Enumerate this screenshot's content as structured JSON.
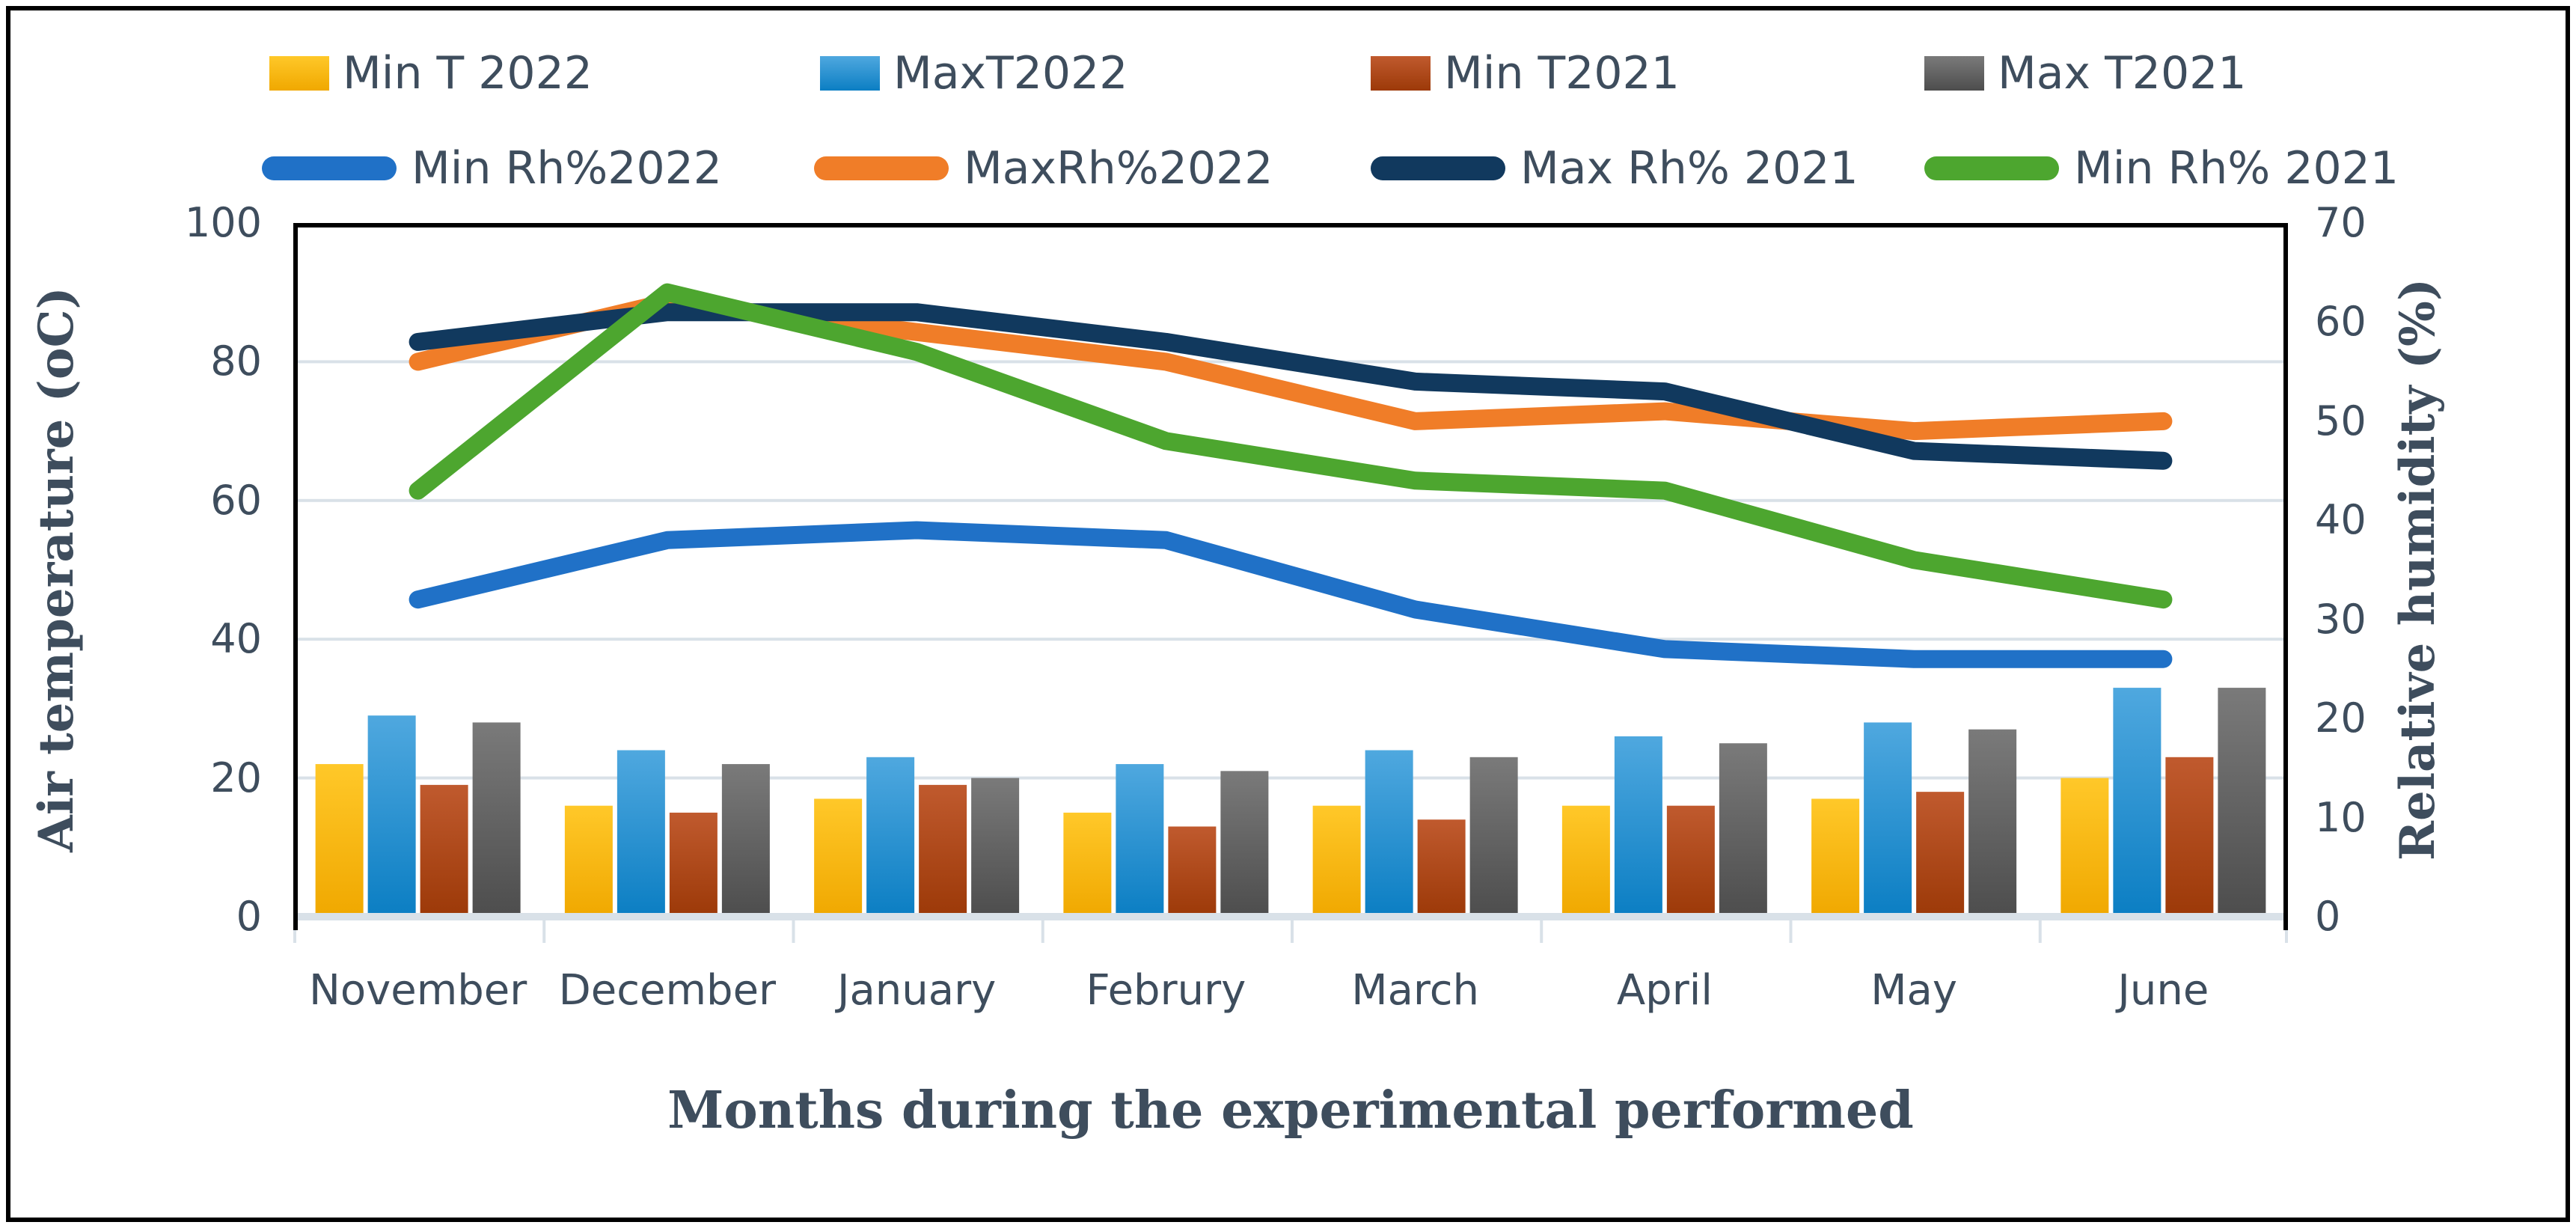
{
  "legend": {
    "row1": [
      {
        "label": "Min T 2022",
        "swatch": "bar",
        "color_top": "#FFC829",
        "color_bottom": "#F0A800"
      },
      {
        "label": "MaxT2022",
        "swatch": "bar",
        "color_top": "#4FA8DF",
        "color_bottom": "#0B7EC3"
      },
      {
        "label": "Min T2021",
        "swatch": "bar",
        "color_top": "#C05A2E",
        "color_bottom": "#9C3908"
      },
      {
        "label": "Max T2021",
        "swatch": "bar",
        "color_top": "#7A7A7A",
        "color_bottom": "#4D4D4D"
      }
    ],
    "row2": [
      {
        "label": "Min Rh%2022",
        "swatch": "line",
        "color": "#2071C7"
      },
      {
        "label": "MaxRh%2022",
        "swatch": "line",
        "color": "#F07D28"
      },
      {
        "label": "Max Rh% 2021",
        "swatch": "line",
        "color": "#11395E"
      },
      {
        "label": "Min Rh% 2021",
        "swatch": "line",
        "color": "#4DA62F"
      }
    ]
  },
  "left_axis": {
    "title": "Air temperature (oC)",
    "min": 0,
    "max": 100,
    "ticks": [
      "100",
      "80",
      "60",
      "40",
      "20",
      "0"
    ]
  },
  "right_axis": {
    "title": "Relative humidity (%)",
    "min": 0,
    "max": 70,
    "ticks": [
      "70",
      "60",
      "50",
      "40",
      "30",
      "20",
      "10",
      "0"
    ]
  },
  "x_axis": {
    "title": "Months during the experimental performed",
    "categories": [
      "November",
      "December",
      "January",
      "Februry",
      "March",
      "April",
      "May",
      "June"
    ]
  },
  "chart_data": {
    "type": "combo-bar-line",
    "categories": [
      "November",
      "December",
      "January",
      "Februry",
      "March",
      "April",
      "May",
      "June"
    ],
    "grid": "horizontal gridlines every 20 left-axis units, color #D9E1E8",
    "legend_position": "top, two rows",
    "bar_series": [
      {
        "name": "Min T 2022",
        "axis": "left",
        "unit": "oC",
        "color_top": "#FFC829",
        "color_bottom": "#F0A800",
        "values": [
          22,
          16,
          17,
          15,
          16,
          16,
          17,
          20
        ]
      },
      {
        "name": "MaxT2022",
        "axis": "left",
        "unit": "oC",
        "color_top": "#4FA8DF",
        "color_bottom": "#0B7EC3",
        "values": [
          29,
          24,
          23,
          22,
          24,
          26,
          28,
          33
        ]
      },
      {
        "name": "Min T2021",
        "axis": "left",
        "unit": "oC",
        "color_top": "#C05A2E",
        "color_bottom": "#9C3908",
        "values": [
          19,
          15,
          19,
          13,
          14,
          16,
          18,
          23
        ]
      },
      {
        "name": "Max T2021",
        "axis": "left",
        "unit": "oC",
        "color_top": "#7A7A7A",
        "color_bottom": "#4D4D4D",
        "values": [
          28,
          22,
          20,
          21,
          23,
          25,
          27,
          33
        ]
      }
    ],
    "line_series": [
      {
        "name": "Min Rh%2022",
        "axis": "right",
        "unit": "%",
        "color": "#2071C7",
        "values": [
          32,
          38,
          39,
          38,
          31,
          27,
          26,
          26
        ]
      },
      {
        "name": "MaxRh%2022",
        "axis": "right",
        "unit": "%",
        "color": "#F07D28",
        "values": [
          56,
          62,
          59,
          56,
          50,
          51,
          49,
          50
        ]
      },
      {
        "name": "Max Rh% 2021",
        "axis": "right",
        "unit": "%",
        "color": "#11395E",
        "values": [
          58,
          61,
          61,
          58,
          54,
          53,
          47,
          46
        ]
      },
      {
        "name": "Min Rh% 2021",
        "axis": "right",
        "unit": "%",
        "color": "#4DA62F",
        "values": [
          43,
          63,
          57,
          48,
          44,
          43,
          36,
          32
        ]
      }
    ],
    "left_ylim": [
      0,
      100
    ],
    "right_ylim": [
      0,
      70
    ],
    "title": ""
  },
  "colors": {
    "text": "#3E4D5D",
    "gridline": "#D9E1E8",
    "plot_border": "#000000"
  }
}
